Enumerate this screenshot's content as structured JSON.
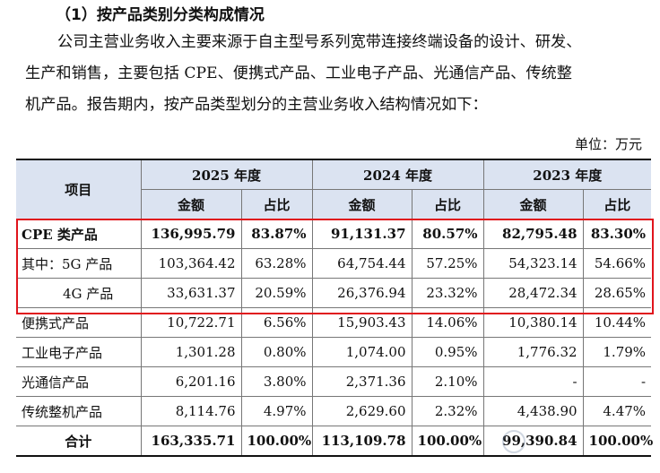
{
  "heading": "（1）按产品类别分类构成情况",
  "paragraph_lines": [
    "公司主营业务收入主要来源于自主型号系列宽带连接终端设备的设计、研发、",
    "生产和销售，主要包括 CPE、便携式产品、工业电子产品、光通信产品、传统整",
    "机产品。报告期内，按产品类型划分的主营业务收入结构情况如下："
  ],
  "unit_label": "单位：万元",
  "table": {
    "item_header": "项目",
    "years": [
      "2025 年度",
      "2024 年度",
      "2023 年度"
    ],
    "sub_headers": [
      "金额",
      "占比"
    ],
    "rows": [
      {
        "label": "CPE 类产品",
        "cells": [
          "136,995.79",
          "83.87%",
          "91,131.37",
          "80.57%",
          "82,795.48",
          "83.30%"
        ]
      },
      {
        "label": "其中：5G 产品",
        "cells": [
          "103,364.42",
          "63.28%",
          "64,754.44",
          "57.25%",
          "54,323.14",
          "54.66%"
        ]
      },
      {
        "label": "4G 产品",
        "cells": [
          "33,631.37",
          "20.59%",
          "26,376.94",
          "23.32%",
          "28,472.34",
          "28.65%"
        ]
      },
      {
        "label": "便携式产品",
        "cells": [
          "10,722.71",
          "6.56%",
          "15,903.43",
          "14.06%",
          "10,380.14",
          "10.44%"
        ]
      },
      {
        "label": "工业电子产品",
        "cells": [
          "1,301.28",
          "0.80%",
          "1,074.00",
          "0.95%",
          "1,776.32",
          "1.79%"
        ]
      },
      {
        "label": "光通信产品",
        "cells": [
          "6,201.16",
          "3.80%",
          "2,371.36",
          "2.10%",
          "-",
          "-"
        ]
      },
      {
        "label": "传统整机产品",
        "cells": [
          "8,114.76",
          "4.97%",
          "2,629.60",
          "2.32%",
          "4,438.90",
          "4.47%"
        ]
      },
      {
        "label": "合计",
        "cells": [
          "163,335.71",
          "100.00%",
          "113,109.78",
          "100.00%",
          "99,390.84",
          "100.00%"
        ]
      }
    ]
  },
  "highlight_color": "#e0141c",
  "header_bg_color": "#dbe3f1"
}
